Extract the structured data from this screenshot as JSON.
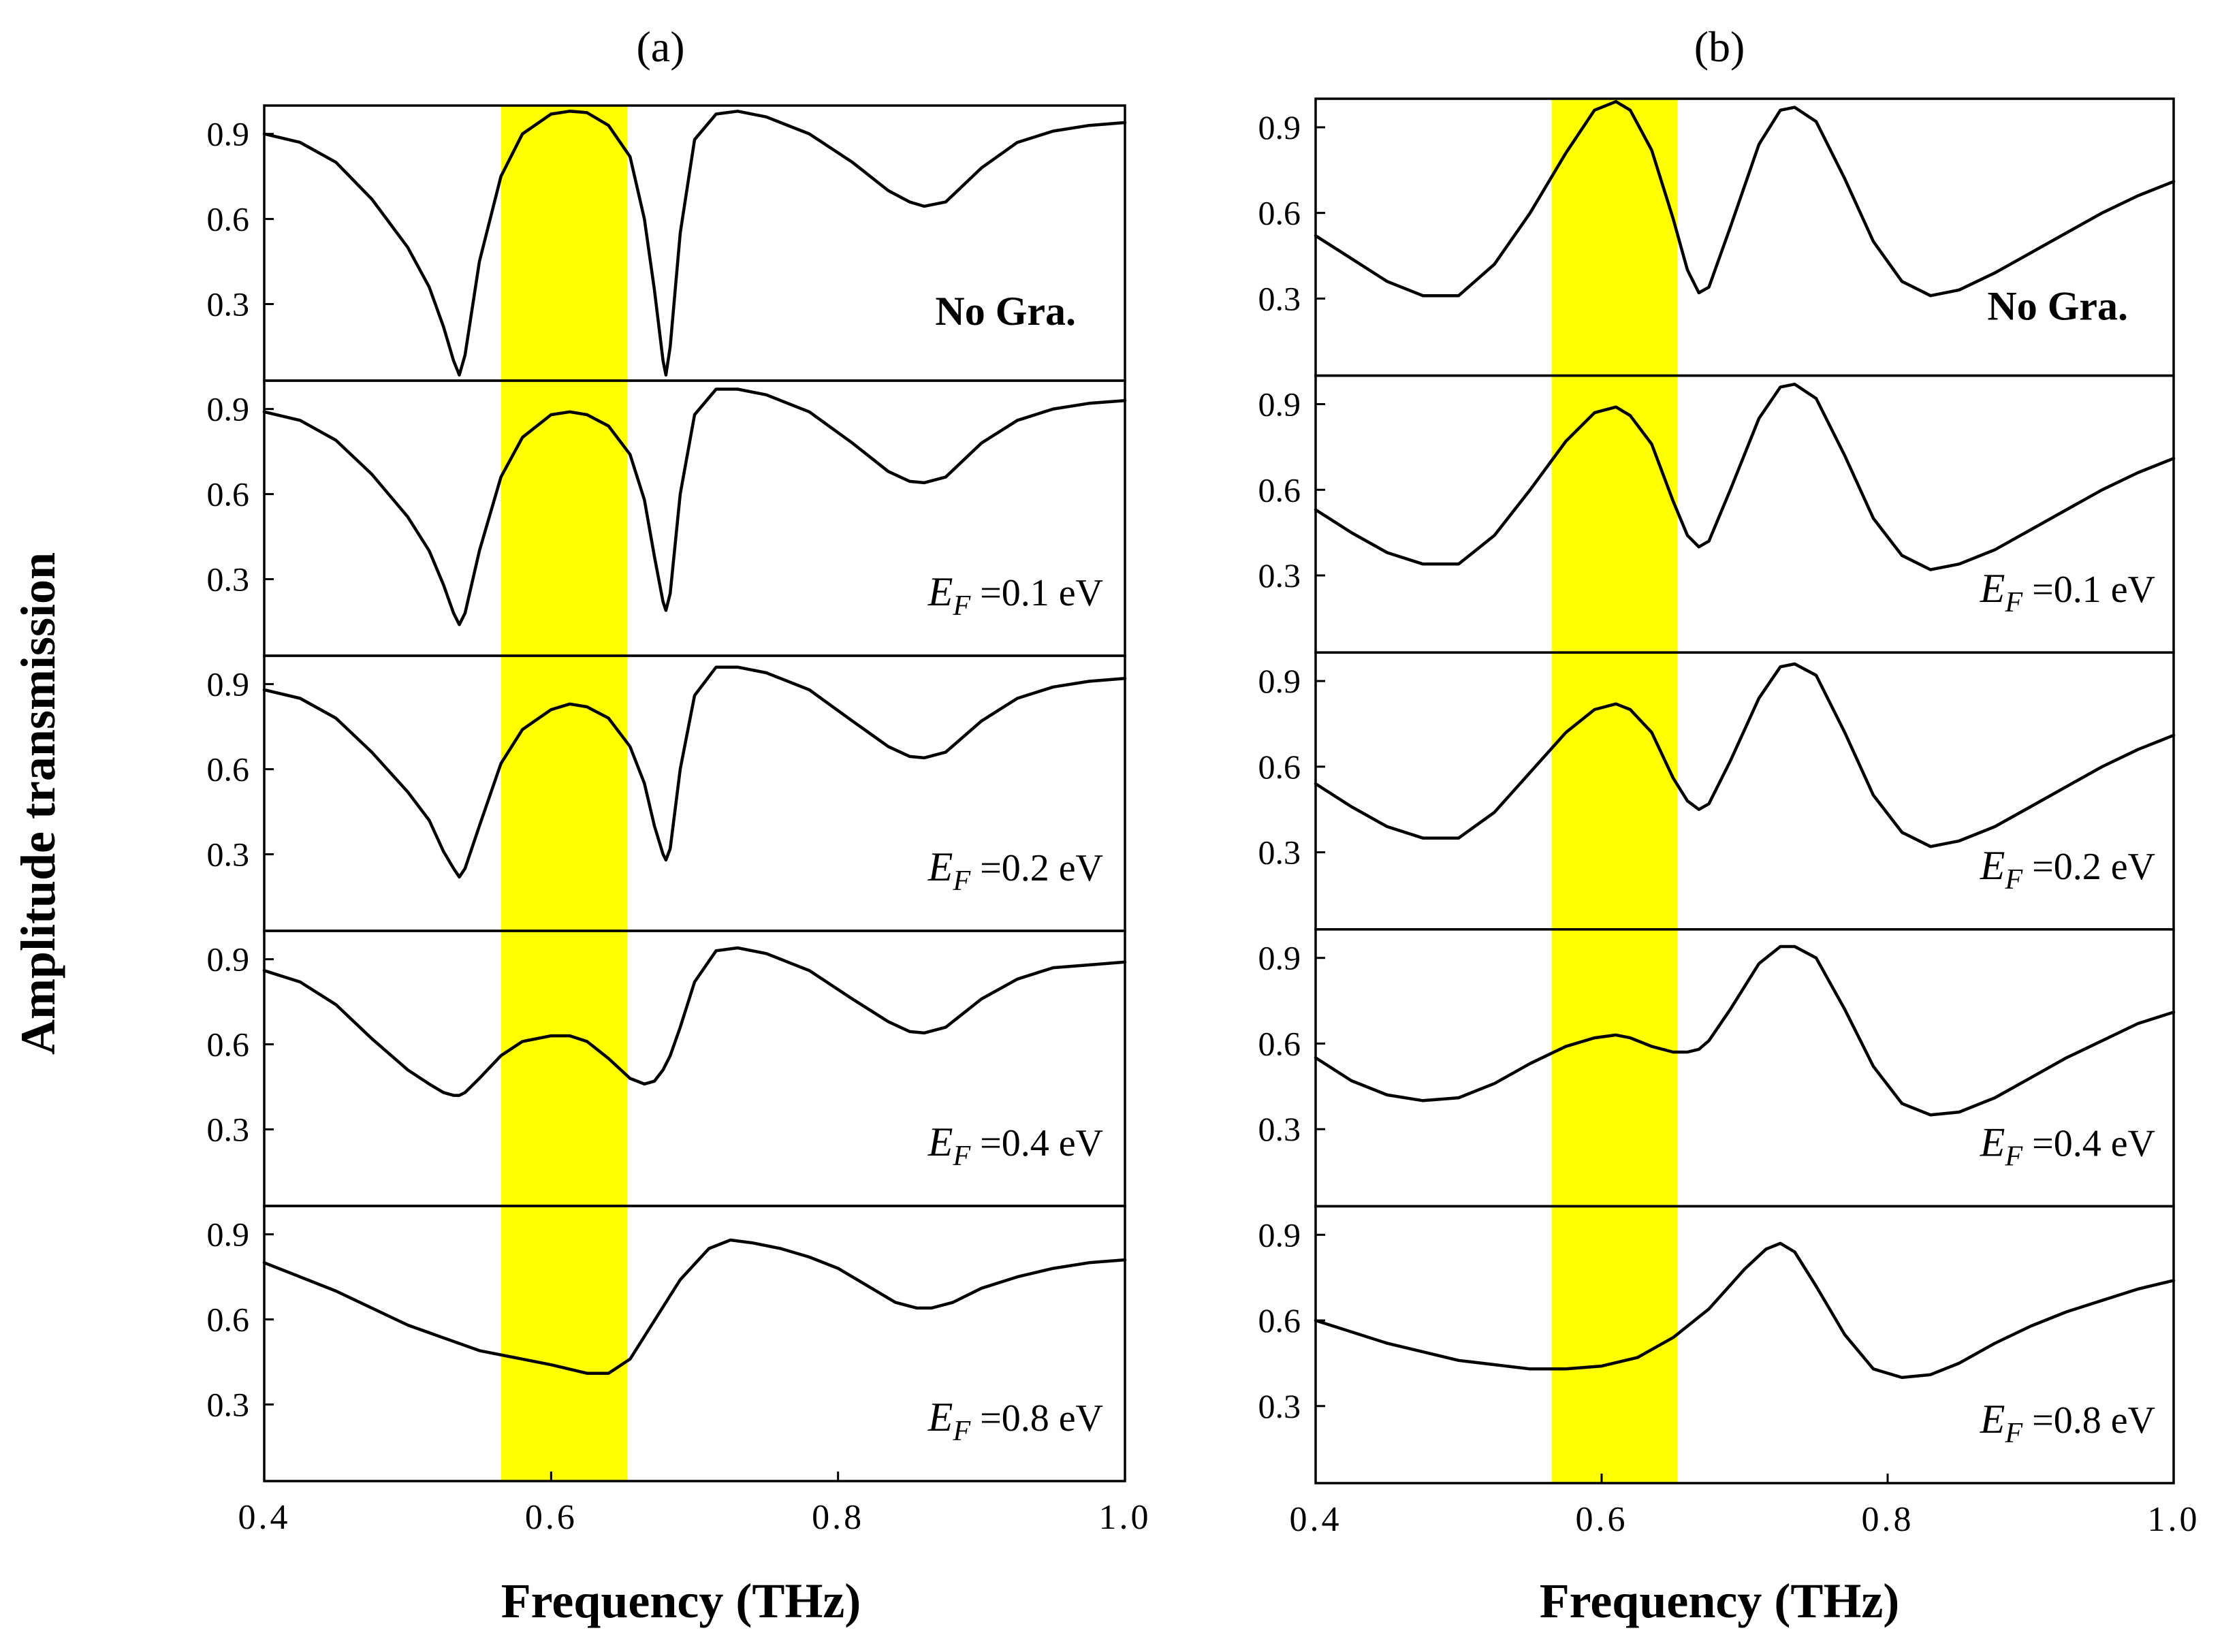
{
  "chart_data": [
    {
      "type": "line",
      "panel_label": "(a)",
      "xlabel": "Frequency (THz)",
      "ylabel": "Amplitude transmission",
      "xlim": [
        0.4,
        1.0
      ],
      "ylim": [
        0.03,
        1.0
      ],
      "x_ticks": [
        0.4,
        0.6,
        0.8,
        1.0
      ],
      "x_tick_labels": [
        "0.4",
        "0.6",
        "0.8",
        "1.0"
      ],
      "y_ticks": [
        0.3,
        0.6,
        0.9
      ],
      "y_tick_labels": [
        "0.3",
        "0.6",
        "0.9"
      ],
      "highlight_band": {
        "x": [
          0.565,
          0.653
        ],
        "color": "#ffff00"
      },
      "line_color": "#000000",
      "subplots": [
        {
          "annotation": "No Gra.",
          "annotation_bold": true,
          "x": [
            0.4,
            0.425,
            0.45,
            0.475,
            0.5,
            0.515,
            0.525,
            0.532,
            0.536,
            0.54,
            0.55,
            0.565,
            0.58,
            0.6,
            0.613,
            0.625,
            0.64,
            0.655,
            0.665,
            0.672,
            0.678,
            0.68,
            0.683,
            0.69,
            0.7,
            0.715,
            0.73,
            0.75,
            0.78,
            0.81,
            0.835,
            0.85,
            0.86,
            0.875,
            0.9,
            0.925,
            0.95,
            0.975,
            1.0
          ],
          "y": [
            0.9,
            0.87,
            0.8,
            0.67,
            0.5,
            0.36,
            0.22,
            0.1,
            0.05,
            0.12,
            0.45,
            0.75,
            0.9,
            0.97,
            0.98,
            0.975,
            0.93,
            0.82,
            0.6,
            0.35,
            0.1,
            0.05,
            0.15,
            0.55,
            0.88,
            0.97,
            0.98,
            0.96,
            0.9,
            0.8,
            0.7,
            0.66,
            0.645,
            0.66,
            0.78,
            0.87,
            0.91,
            0.93,
            0.94
          ]
        },
        {
          "annotation_symbol": "E",
          "annotation_subscript": "F",
          "annotation": "=0.1 eV",
          "x": [
            0.4,
            0.425,
            0.45,
            0.475,
            0.5,
            0.515,
            0.525,
            0.532,
            0.536,
            0.54,
            0.55,
            0.565,
            0.58,
            0.6,
            0.613,
            0.625,
            0.64,
            0.655,
            0.665,
            0.672,
            0.678,
            0.68,
            0.683,
            0.69,
            0.7,
            0.715,
            0.73,
            0.75,
            0.78,
            0.81,
            0.835,
            0.85,
            0.86,
            0.875,
            0.9,
            0.925,
            0.95,
            0.975,
            1.0
          ],
          "y": [
            0.89,
            0.86,
            0.79,
            0.67,
            0.52,
            0.4,
            0.28,
            0.18,
            0.14,
            0.18,
            0.4,
            0.66,
            0.8,
            0.88,
            0.89,
            0.88,
            0.84,
            0.74,
            0.58,
            0.38,
            0.22,
            0.19,
            0.25,
            0.6,
            0.88,
            0.97,
            0.97,
            0.95,
            0.89,
            0.78,
            0.68,
            0.645,
            0.64,
            0.66,
            0.78,
            0.86,
            0.9,
            0.92,
            0.93
          ]
        },
        {
          "annotation_symbol": "E",
          "annotation_subscript": "F",
          "annotation": "=0.2 eV",
          "x": [
            0.4,
            0.425,
            0.45,
            0.475,
            0.5,
            0.515,
            0.525,
            0.532,
            0.536,
            0.54,
            0.55,
            0.565,
            0.58,
            0.6,
            0.613,
            0.625,
            0.64,
            0.655,
            0.665,
            0.672,
            0.678,
            0.68,
            0.683,
            0.69,
            0.7,
            0.715,
            0.73,
            0.75,
            0.78,
            0.81,
            0.835,
            0.85,
            0.86,
            0.875,
            0.9,
            0.925,
            0.95,
            0.975,
            1.0
          ],
          "y": [
            0.88,
            0.85,
            0.78,
            0.66,
            0.52,
            0.42,
            0.31,
            0.25,
            0.22,
            0.25,
            0.4,
            0.62,
            0.74,
            0.81,
            0.83,
            0.82,
            0.78,
            0.68,
            0.55,
            0.4,
            0.3,
            0.28,
            0.32,
            0.6,
            0.86,
            0.96,
            0.96,
            0.94,
            0.88,
            0.77,
            0.68,
            0.645,
            0.64,
            0.66,
            0.77,
            0.85,
            0.89,
            0.91,
            0.92
          ]
        },
        {
          "annotation_symbol": "E",
          "annotation_subscript": "F",
          "annotation": "=0.4 eV",
          "x": [
            0.4,
            0.425,
            0.45,
            0.475,
            0.5,
            0.515,
            0.525,
            0.532,
            0.536,
            0.54,
            0.55,
            0.565,
            0.58,
            0.6,
            0.613,
            0.625,
            0.64,
            0.655,
            0.665,
            0.672,
            0.678,
            0.68,
            0.683,
            0.69,
            0.7,
            0.715,
            0.73,
            0.75,
            0.78,
            0.81,
            0.835,
            0.85,
            0.86,
            0.875,
            0.9,
            0.925,
            0.95,
            0.975,
            1.0
          ],
          "y": [
            0.86,
            0.82,
            0.74,
            0.62,
            0.51,
            0.46,
            0.43,
            0.42,
            0.42,
            0.43,
            0.48,
            0.56,
            0.61,
            0.63,
            0.63,
            0.61,
            0.55,
            0.48,
            0.46,
            0.47,
            0.51,
            0.53,
            0.56,
            0.66,
            0.82,
            0.93,
            0.94,
            0.92,
            0.86,
            0.76,
            0.68,
            0.645,
            0.64,
            0.66,
            0.76,
            0.83,
            0.87,
            0.88,
            0.89
          ]
        },
        {
          "annotation_symbol": "E",
          "annotation_subscript": "F",
          "annotation": "=0.8 eV",
          "x": [
            0.4,
            0.45,
            0.5,
            0.55,
            0.6,
            0.625,
            0.64,
            0.655,
            0.67,
            0.69,
            0.71,
            0.725,
            0.74,
            0.76,
            0.78,
            0.8,
            0.82,
            0.84,
            0.855,
            0.865,
            0.88,
            0.9,
            0.925,
            0.95,
            0.975,
            1.0
          ],
          "y": [
            0.8,
            0.7,
            0.58,
            0.49,
            0.44,
            0.41,
            0.41,
            0.46,
            0.58,
            0.74,
            0.85,
            0.88,
            0.87,
            0.85,
            0.82,
            0.78,
            0.72,
            0.66,
            0.64,
            0.64,
            0.66,
            0.71,
            0.75,
            0.78,
            0.8,
            0.81
          ]
        }
      ]
    },
    {
      "type": "line",
      "panel_label": "(b)",
      "xlabel": "Frequency (THz)",
      "xlim": [
        0.4,
        1.0
      ],
      "ylim": [
        0.03,
        1.0
      ],
      "x_ticks": [
        0.4,
        0.6,
        0.8,
        1.0
      ],
      "x_tick_labels": [
        "0.4",
        "0.6",
        "0.8",
        "1.0"
      ],
      "y_ticks": [
        0.3,
        0.6,
        0.9
      ],
      "y_tick_labels": [
        "0.3",
        "0.6",
        "0.9"
      ],
      "highlight_band": {
        "x": [
          0.565,
          0.653
        ],
        "color": "#ffff00"
      },
      "line_color": "#000000",
      "subplots": [
        {
          "annotation": "No Gra.",
          "annotation_bold": true,
          "x": [
            0.4,
            0.425,
            0.45,
            0.475,
            0.5,
            0.525,
            0.55,
            0.575,
            0.595,
            0.61,
            0.62,
            0.635,
            0.65,
            0.66,
            0.668,
            0.675,
            0.69,
            0.71,
            0.725,
            0.735,
            0.75,
            0.77,
            0.79,
            0.81,
            0.83,
            0.85,
            0.875,
            0.9,
            0.925,
            0.95,
            0.975,
            1.0
          ],
          "y": [
            0.52,
            0.44,
            0.36,
            0.31,
            0.31,
            0.42,
            0.6,
            0.81,
            0.96,
            0.99,
            0.96,
            0.82,
            0.58,
            0.4,
            0.32,
            0.34,
            0.55,
            0.84,
            0.96,
            0.97,
            0.92,
            0.72,
            0.5,
            0.36,
            0.31,
            0.33,
            0.39,
            0.46,
            0.53,
            0.6,
            0.66,
            0.71
          ]
        },
        {
          "annotation_symbol": "E",
          "annotation_subscript": "F",
          "annotation": "=0.1 eV",
          "x": [
            0.4,
            0.425,
            0.45,
            0.475,
            0.5,
            0.525,
            0.55,
            0.575,
            0.595,
            0.61,
            0.62,
            0.635,
            0.65,
            0.66,
            0.668,
            0.675,
            0.69,
            0.71,
            0.725,
            0.735,
            0.75,
            0.77,
            0.79,
            0.81,
            0.83,
            0.85,
            0.875,
            0.9,
            0.925,
            0.95,
            0.975,
            1.0
          ],
          "y": [
            0.53,
            0.45,
            0.38,
            0.34,
            0.34,
            0.44,
            0.6,
            0.77,
            0.87,
            0.89,
            0.86,
            0.76,
            0.56,
            0.44,
            0.4,
            0.42,
            0.6,
            0.85,
            0.96,
            0.97,
            0.92,
            0.72,
            0.5,
            0.37,
            0.32,
            0.34,
            0.39,
            0.46,
            0.53,
            0.6,
            0.66,
            0.71
          ]
        },
        {
          "annotation_symbol": "E",
          "annotation_subscript": "F",
          "annotation": "=0.2 eV",
          "x": [
            0.4,
            0.425,
            0.45,
            0.475,
            0.5,
            0.525,
            0.55,
            0.575,
            0.595,
            0.61,
            0.62,
            0.635,
            0.65,
            0.66,
            0.668,
            0.675,
            0.69,
            0.71,
            0.725,
            0.735,
            0.75,
            0.77,
            0.79,
            0.81,
            0.83,
            0.85,
            0.875,
            0.9,
            0.925,
            0.95,
            0.975,
            1.0
          ],
          "y": [
            0.54,
            0.46,
            0.39,
            0.35,
            0.35,
            0.44,
            0.58,
            0.72,
            0.8,
            0.82,
            0.8,
            0.72,
            0.56,
            0.48,
            0.45,
            0.47,
            0.62,
            0.84,
            0.95,
            0.96,
            0.92,
            0.72,
            0.5,
            0.37,
            0.32,
            0.34,
            0.39,
            0.46,
            0.53,
            0.6,
            0.66,
            0.71
          ]
        },
        {
          "annotation_symbol": "E",
          "annotation_subscript": "F",
          "annotation": "=0.4 eV",
          "x": [
            0.4,
            0.425,
            0.45,
            0.475,
            0.5,
            0.525,
            0.55,
            0.575,
            0.595,
            0.61,
            0.62,
            0.635,
            0.65,
            0.66,
            0.668,
            0.675,
            0.69,
            0.71,
            0.725,
            0.735,
            0.75,
            0.77,
            0.79,
            0.81,
            0.83,
            0.85,
            0.875,
            0.9,
            0.925,
            0.95,
            0.975,
            1.0
          ],
          "y": [
            0.55,
            0.47,
            0.42,
            0.4,
            0.41,
            0.46,
            0.53,
            0.59,
            0.62,
            0.63,
            0.62,
            0.59,
            0.57,
            0.57,
            0.58,
            0.61,
            0.72,
            0.88,
            0.94,
            0.94,
            0.9,
            0.72,
            0.52,
            0.39,
            0.35,
            0.36,
            0.41,
            0.48,
            0.55,
            0.61,
            0.67,
            0.71
          ]
        },
        {
          "annotation_symbol": "E",
          "annotation_subscript": "F",
          "annotation": "=0.8 eV",
          "x": [
            0.4,
            0.45,
            0.5,
            0.55,
            0.575,
            0.6,
            0.625,
            0.65,
            0.675,
            0.7,
            0.715,
            0.725,
            0.735,
            0.75,
            0.77,
            0.79,
            0.81,
            0.83,
            0.85,
            0.875,
            0.9,
            0.925,
            0.95,
            0.975,
            1.0
          ],
          "y": [
            0.6,
            0.52,
            0.46,
            0.43,
            0.43,
            0.44,
            0.47,
            0.54,
            0.64,
            0.78,
            0.85,
            0.87,
            0.84,
            0.72,
            0.55,
            0.43,
            0.4,
            0.41,
            0.45,
            0.52,
            0.58,
            0.63,
            0.67,
            0.71,
            0.74
          ]
        }
      ]
    }
  ]
}
